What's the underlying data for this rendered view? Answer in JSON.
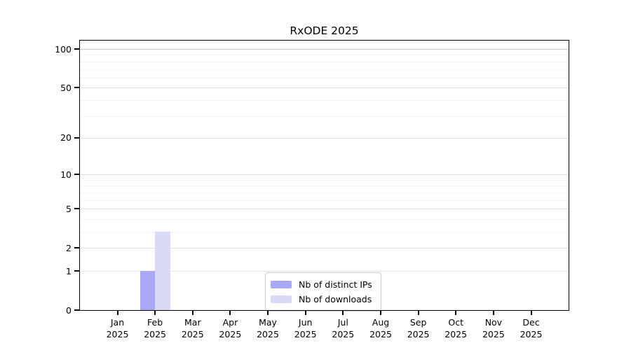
{
  "title": "RxODE 2025",
  "chart_data": {
    "type": "bar",
    "title": "RxODE 2025",
    "categories": [
      "Jan 2025",
      "Feb 2025",
      "Mar 2025",
      "Apr 2025",
      "May 2025",
      "Jun 2025",
      "Jul 2025",
      "Aug 2025",
      "Sep 2025",
      "Oct 2025",
      "Nov 2025",
      "Dec 2025"
    ],
    "months": [
      "Jan",
      "Feb",
      "Mar",
      "Apr",
      "May",
      "Jun",
      "Jul",
      "Aug",
      "Sep",
      "Oct",
      "Nov",
      "Dec"
    ],
    "year": "2025",
    "series": [
      {
        "name": "Nb of distinct IPs",
        "color": "#a8a8f4",
        "values": [
          0,
          1,
          0,
          0,
          0,
          0,
          0,
          0,
          0,
          0,
          0,
          0
        ]
      },
      {
        "name": "Nb of downloads",
        "color": "#d8daf8",
        "values": [
          0,
          3,
          0,
          0,
          0,
          0,
          0,
          0,
          0,
          0,
          0,
          0
        ]
      }
    ],
    "yscale": "log1p",
    "ylim": [
      0,
      100
    ],
    "yticks": [
      0,
      1,
      2,
      5,
      10,
      20,
      50,
      100
    ],
    "yminorticks": [
      3,
      4,
      6,
      7,
      8,
      9,
      30,
      40,
      60,
      70,
      80,
      90
    ],
    "xlabel": "",
    "ylabel": "",
    "grid": "horizontal",
    "legend_position": "inside-bottom-center"
  },
  "colors": {
    "grid_top": "#c9c9c9",
    "grid_major": "#e2e2e2",
    "grid_minor": "#f3f3f3",
    "spine": "#000000",
    "legend_border": "#cccccc",
    "background": "#ffffff",
    "text": "#000000"
  }
}
